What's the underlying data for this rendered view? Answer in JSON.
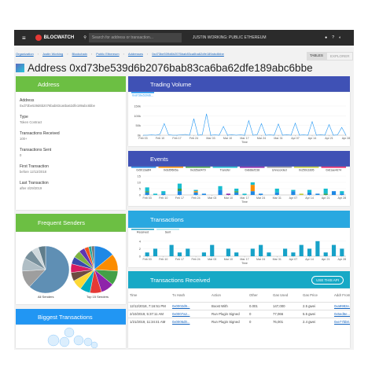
{
  "topbar": {
    "brand": "BLOCWATCH",
    "search": "Search for address or transaction...",
    "network": "JUSTIN WORKING: PUBLIC ETHEREUM"
  },
  "breadcrumbs": [
    "Organization",
    "Justin Working",
    "Blockchain",
    "Public Ethereum",
    "Addresses",
    "0xd73be539d6b2076bab83ca6ba62dfe189abc6bbe"
  ],
  "view_buttons": [
    "TABLES",
    "EXPLORER"
  ],
  "title": "Address 0xd73be539d6b2076bab83ca6ba62dfe189abc6bbe",
  "address_panel": {
    "title": "Address",
    "fields": [
      {
        "label": "Address",
        "value": "0xd73be539d6b2076bab83ca6ba62dfe189abc6bbe"
      },
      {
        "label": "Type",
        "value": "Token Contract"
      },
      {
        "label": "Transactions Received",
        "value": "100+"
      },
      {
        "label": "Transactions Sent",
        "value": "0"
      },
      {
        "label": "First Transaction",
        "value": "before 12/13/2018"
      },
      {
        "label": "Last Transaction",
        "value": "after 4/29/2019"
      }
    ]
  },
  "senders_panel": {
    "title": "Frequent Senders",
    "pies": [
      {
        "label": "All Senders",
        "values": [
          62,
          12,
          9,
          7,
          5,
          5
        ],
        "colors": [
          "#5f8fb4",
          "#9e9e9e",
          "#b0bec5",
          "#78909c",
          "#cfd8dc",
          "#607d8b"
        ]
      },
      {
        "label": "Top 15 Senders",
        "values": [
          14,
          12,
          10,
          9,
          8,
          7,
          7,
          6,
          6,
          5,
          5,
          4,
          3,
          2,
          2
        ],
        "colors": [
          "#1e88e5",
          "#fb8c00",
          "#43a047",
          "#8e24aa",
          "#e53935",
          "#00acc1",
          "#fdd835",
          "#6d4c41",
          "#d81b60",
          "#3949ab",
          "#7cb342",
          "#5e35b1",
          "#f4511e",
          "#26a69a",
          "#757575"
        ]
      }
    ]
  },
  "biggest_panel": {
    "title": "Biggest Transactions"
  },
  "charts": [
    {
      "type": "line",
      "title": "Trading Volume",
      "series": [
        {
          "name": "0xd73be539d6...",
          "color": "#2196f3",
          "values": [
            0,
            0,
            2000,
            0,
            5000,
            60000,
            3000,
            0,
            0,
            2000,
            4000,
            0,
            85000,
            0,
            3000,
            110000,
            0,
            2000,
            0,
            45000,
            0,
            3000,
            0,
            2000,
            0,
            75000,
            0,
            3000,
            60000,
            0,
            2000,
            0,
            58000,
            0,
            3000,
            0,
            62000,
            0,
            2000,
            0,
            70000,
            0,
            3000,
            0,
            55000,
            0,
            2000,
            40000,
            0
          ]
        }
      ],
      "xlim": [
        0,
        48
      ],
      "xticks": [
        {
          "value": 0,
          "label": "Feb 03"
        },
        {
          "value": 4,
          "label": "Feb 10"
        },
        {
          "value": 8,
          "label": "Feb 17"
        },
        {
          "value": 12,
          "label": "Feb 24"
        },
        {
          "value": 16,
          "label": "Mar 03"
        },
        {
          "value": 20,
          "label": "Mar 10"
        },
        {
          "value": 24,
          "label": "Mar 17"
        },
        {
          "value": 28,
          "label": "Mar 24"
        },
        {
          "value": 32,
          "label": "Mar 31"
        },
        {
          "value": 36,
          "label": "Apr 07"
        },
        {
          "value": 40,
          "label": "Apr 14"
        },
        {
          "value": 44,
          "label": "Apr 21"
        },
        {
          "value": 48,
          "label": "Apr 28"
        }
      ],
      "ylim": [
        0,
        170000
      ],
      "yticks": [
        {
          "value": 0,
          "label": "0k"
        },
        {
          "value": 50000,
          "label": "50k"
        },
        {
          "value": 100000,
          "label": "100k"
        },
        {
          "value": 150000,
          "label": "150k"
        }
      ],
      "xlabel": "Time"
    },
    {
      "type": "stacked_bar",
      "title": "Events",
      "series": [
        {
          "name": "0x5013a8f4",
          "color": "#1e88e5",
          "values": [
            2,
            0,
            1,
            0,
            3,
            0,
            2,
            1,
            0,
            4,
            0,
            2,
            0,
            3,
            1,
            0,
            2,
            0,
            3,
            0,
            2,
            1,
            0,
            3,
            1
          ]
        },
        {
          "name": "0x6d5f6b5a",
          "color": "#fb8c00",
          "values": [
            0,
            0,
            0,
            0,
            0,
            0,
            1,
            0,
            0,
            0,
            0,
            0,
            0,
            5,
            0,
            0,
            0,
            0,
            0,
            0,
            0,
            0,
            0,
            0,
            0
          ]
        },
        {
          "name": "0xd35a0479",
          "color": "#43a047",
          "values": [
            1,
            0,
            0,
            0,
            2,
            0,
            0,
            0,
            0,
            0,
            0,
            1,
            0,
            0,
            0,
            0,
            0,
            0,
            0,
            0,
            0,
            0,
            1,
            0,
            0
          ]
        },
        {
          "name": "Transfer",
          "color": "#17becf",
          "values": [
            3,
            1,
            2,
            0,
            4,
            0,
            1,
            0,
            0,
            3,
            0,
            2,
            1,
            2,
            0,
            0,
            3,
            0,
            1,
            0,
            2,
            0,
            4,
            0,
            2
          ]
        },
        {
          "name": "0x8d8ef238",
          "color": "#8e24aa",
          "values": [
            0,
            0,
            0,
            0,
            0,
            0,
            0,
            0,
            0,
            0,
            1,
            0,
            0,
            0,
            0,
            0,
            0,
            0,
            0,
            0,
            0,
            0,
            0,
            0,
            0
          ]
        },
        {
          "name": "Unrecorded",
          "color": "#9e9e9e",
          "values": [
            0,
            0,
            0,
            0,
            0,
            0,
            0,
            0,
            0,
            0,
            0,
            0,
            0,
            0,
            0,
            0,
            0,
            0,
            0,
            0,
            0,
            0,
            0,
            0,
            0
          ]
        },
        {
          "name": "0x250c1895",
          "color": "#c0ca33",
          "values": [
            0,
            0,
            0,
            0,
            0,
            0,
            0,
            0,
            0,
            0,
            0,
            0,
            0,
            0,
            0,
            0,
            0,
            0,
            0,
            1,
            0,
            0,
            0,
            0,
            0
          ]
        },
        {
          "name": "0x61ae4d74",
          "color": "#e91e63",
          "values": [
            0,
            0,
            0,
            0,
            0,
            0,
            0,
            0,
            0,
            0,
            0,
            0,
            0,
            0,
            0,
            0,
            0,
            0,
            0,
            0,
            0,
            0,
            0,
            0,
            0
          ]
        }
      ],
      "xlim": [
        -0.5,
        24.5
      ],
      "xticks": [
        {
          "value": 0,
          "label": "Feb 03"
        },
        {
          "value": 2,
          "label": "Feb 10"
        },
        {
          "value": 4,
          "label": "Feb 17"
        },
        {
          "value": 6,
          "label": "Feb 24"
        },
        {
          "value": 8,
          "label": "Mar 03"
        },
        {
          "value": 10,
          "label": "Mar 10"
        },
        {
          "value": 12,
          "label": "Mar 17"
        },
        {
          "value": 14,
          "label": "Mar 24"
        },
        {
          "value": 16,
          "label": "Mar 31"
        },
        {
          "value": 18,
          "label": "Apr 07"
        },
        {
          "value": 20,
          "label": "Apr 14"
        },
        {
          "value": 22,
          "label": "Apr 21"
        },
        {
          "value": 24,
          "label": "Apr 28"
        }
      ],
      "ylim": [
        0,
        15
      ],
      "yticks": [
        0,
        5,
        10,
        15
      ],
      "xlabel": "Time"
    },
    {
      "type": "stacked_bar",
      "title": "Transactions",
      "series": [
        {
          "name": "Received",
          "color": "#17a2c8",
          "values": [
            1,
            2,
            0,
            3,
            1,
            2,
            0,
            1,
            3,
            0,
            2,
            1,
            0,
            2,
            3,
            1,
            0,
            2,
            1,
            3,
            2,
            4,
            1,
            3,
            2
          ]
        },
        {
          "name": "Sent",
          "color": "#a5e4f0",
          "values": [
            0,
            0,
            0,
            0,
            0,
            0,
            0,
            0,
            0,
            0,
            0,
            0,
            0,
            0,
            0,
            0,
            0,
            0,
            0,
            0,
            0,
            0,
            0,
            0,
            0
          ]
        }
      ],
      "xlim": [
        -0.5,
        24.5
      ],
      "xticks": [
        {
          "value": 0,
          "label": "Feb 03"
        },
        {
          "value": 2,
          "label": "Feb 10"
        },
        {
          "value": 4,
          "label": "Feb 17"
        },
        {
          "value": 6,
          "label": "Feb 24"
        },
        {
          "value": 8,
          "label": "Mar 03"
        },
        {
          "value": 10,
          "label": "Mar 10"
        },
        {
          "value": 12,
          "label": "Mar 17"
        },
        {
          "value": 14,
          "label": "Mar 24"
        },
        {
          "value": 16,
          "label": "Mar 31"
        },
        {
          "value": 18,
          "label": "Apr 07"
        },
        {
          "value": 20,
          "label": "Apr 14"
        },
        {
          "value": 22,
          "label": "Apr 21"
        },
        {
          "value": 24,
          "label": "Apr 28"
        }
      ],
      "ylim": [
        0,
        5
      ],
      "yticks": [
        0,
        2,
        4
      ],
      "xlabel": "Time"
    }
  ],
  "received_panel": {
    "title": "Transactions Received",
    "button": "USE THIS API",
    "columns": [
      "Time",
      "Tx Hash",
      "Action",
      "Other",
      "Gas Used",
      "Gas Price",
      "Addr From"
    ],
    "rows": [
      [
        "12/12/2018, 7:16:51 PM",
        "0x0002d9...",
        "Boost With",
        "0.001",
        "147,000",
        "2.5 gwei",
        "0xa9982e..."
      ],
      [
        "2/10/2019, 5:37:11 AM",
        "0x0007a2...",
        "Run Plugin Signed",
        "0",
        "77,066",
        "5.5 gwei",
        "0x5ed6e..."
      ],
      [
        "1/21/2019, 11:34:41 AM",
        "0x0005d0...",
        "Run Plugin Signed",
        "0",
        "76,001",
        "2.4 gwei",
        "0xe77bb0..."
      ]
    ]
  }
}
